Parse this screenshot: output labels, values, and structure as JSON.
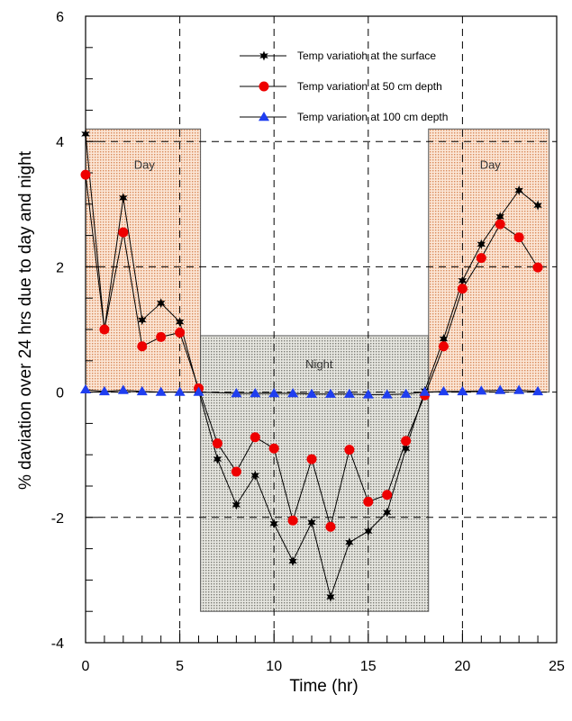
{
  "chart_data": {
    "type": "line",
    "xlabel": "Time (hr)",
    "ylabel": "% daviation over 24 hrs due to day and night",
    "xlim": [
      0,
      25
    ],
    "ylim": [
      -4,
      6
    ],
    "x_ticks": [
      0,
      5,
      10,
      15,
      20,
      25
    ],
    "y_ticks": [
      -4,
      -2,
      0,
      2,
      4,
      6
    ],
    "grid": "dashed, major ticks",
    "legend_position": "top-center",
    "regions": [
      {
        "label": "Day",
        "x": [
          0,
          6.1
        ],
        "y": [
          0,
          4.2
        ],
        "color": "#f4c9a8"
      },
      {
        "label": "Night",
        "x": [
          6.1,
          18.2
        ],
        "y": [
          -3.5,
          0.9
        ],
        "color": "#cfcfc6"
      },
      {
        "label": "Day",
        "x": [
          18.2,
          24.6
        ],
        "y": [
          0,
          4.2
        ],
        "color": "#f4c9a8"
      }
    ],
    "x": [
      0,
      1,
      2,
      3,
      4,
      5,
      6,
      7,
      8,
      9,
      10,
      11,
      12,
      13,
      14,
      15,
      16,
      17,
      18,
      19,
      20,
      21,
      22,
      23,
      24
    ],
    "series": [
      {
        "name": "Temp variatioh at the surface",
        "marker": "star",
        "color": "#000000",
        "values": [
          4.12,
          1.0,
          3.1,
          1.15,
          1.42,
          1.12,
          0.02,
          -1.07,
          -1.8,
          -1.33,
          -2.1,
          -2.7,
          -2.08,
          -3.27,
          -2.4,
          -2.22,
          -1.92,
          -0.9,
          0.02,
          0.85,
          1.78,
          2.36,
          2.8,
          3.22,
          2.98
        ]
      },
      {
        "name": "Temp variation at 50 cm depth",
        "marker": "circle",
        "color": "#ee0000",
        "values": [
          3.47,
          1.0,
          2.55,
          0.73,
          0.88,
          0.95,
          0.06,
          -0.82,
          -1.27,
          -0.72,
          -0.9,
          -2.05,
          -1.07,
          -2.15,
          -0.92,
          -1.75,
          -1.64,
          -0.78,
          -0.05,
          0.73,
          1.65,
          2.14,
          2.68,
          2.47,
          1.99
        ]
      },
      {
        "name": "Temp variation at 100 cm depth",
        "marker": "triangle",
        "color": "#1f3ef0",
        "values": [
          0.04,
          0.01,
          0.03,
          0.01,
          0.0,
          0.0,
          0.0,
          null,
          -0.02,
          -0.02,
          -0.02,
          -0.02,
          -0.03,
          -0.03,
          -0.03,
          -0.04,
          -0.04,
          -0.03,
          0.0,
          0.01,
          0.01,
          0.02,
          0.03,
          0.03,
          0.01
        ]
      }
    ]
  }
}
